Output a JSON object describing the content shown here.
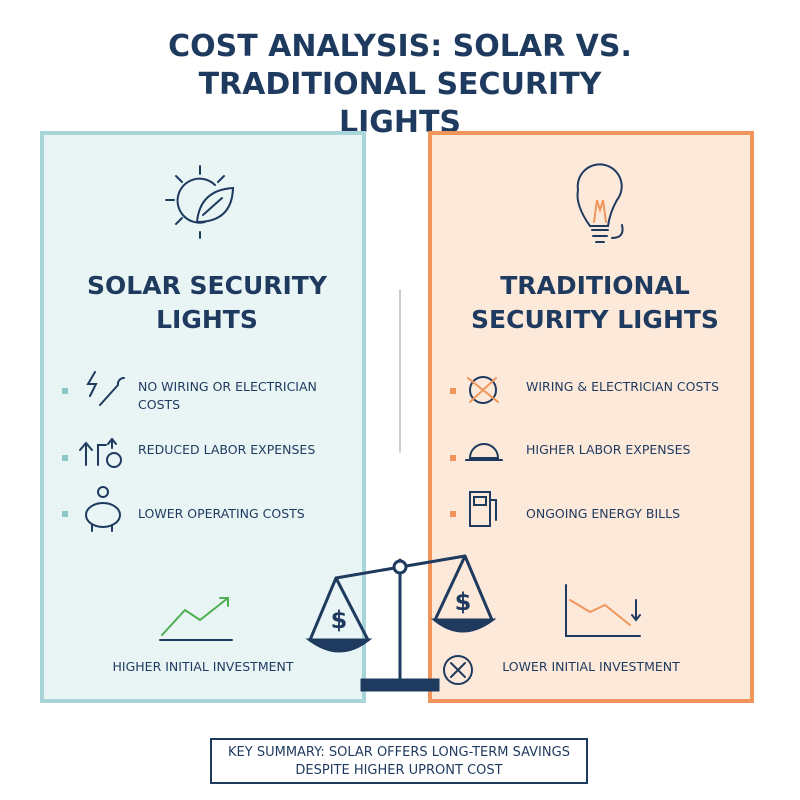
{
  "header": {
    "title": "COST ANALYSIS: SOLAR VS. TRADITIONAL SECURITY LIGHTS"
  },
  "panels": [
    {
      "heading": "SOLAR SECURITY LIGHTS",
      "items": [
        "NO WIRING OR ELECTRICIAN COSTS",
        "REDUCED LABOR EXPENSES",
        "LOWER OPERATING COSTS"
      ],
      "footer": "HIGHER INITIAL INVESTMENT"
    },
    {
      "heading": "TRADITIONAL SECURITY LIGHTS",
      "items": [
        "WIRING & ELECTRICIAN COSTS",
        "HIGHER LABOR EXPENSES",
        "ONGOING ENERGY BILLS"
      ],
      "footer": "LOWER INITIAL INVESTMENT"
    }
  ],
  "summary": "KEY SUMMARY: SOLAR OFFERS LONG-TERM SAVINGS DESPITE HIGHER UPRONT COST"
}
